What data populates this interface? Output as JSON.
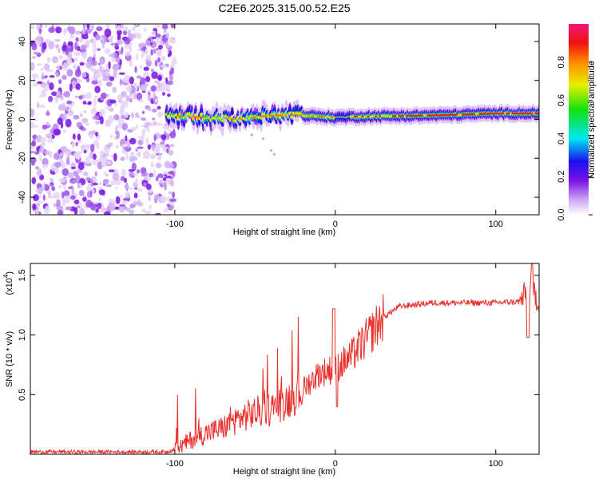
{
  "chart_data": [
    {
      "type": "heatmap",
      "title": "C2E6.2025.315.00.52.E25",
      "xlabel": "Height of straight line (km)",
      "ylabel": "Frequency (Hz)",
      "xlim": [
        -190,
        127
      ],
      "ylim": [
        -49,
        49
      ],
      "x_ticks": [
        -100,
        0,
        100
      ],
      "y_ticks": [
        -40,
        -20,
        0,
        20,
        40
      ],
      "noise_region_x": [
        -190,
        -100
      ],
      "signal_band": {
        "x_start": -105,
        "x_end": 127,
        "center_track": [
          [
            -105,
            2
          ],
          [
            -80,
            1
          ],
          [
            -60,
            0
          ],
          [
            -40,
            2
          ],
          [
            -20,
            2
          ],
          [
            0,
            1
          ],
          [
            20,
            1.5
          ],
          [
            60,
            2
          ],
          [
            100,
            3
          ],
          [
            127,
            3
          ]
        ]
      },
      "colorbar": {
        "label": "Normalized spectral amplitude",
        "range": [
          0.0,
          1.0
        ],
        "ticks": [
          "0.0",
          "0.2",
          "0.4",
          "0.6",
          "0.8"
        ],
        "tick_values": [
          0.0,
          0.2,
          0.4,
          0.6,
          0.8
        ]
      }
    },
    {
      "type": "line",
      "xlabel": "Height of straight line (km)",
      "ylabel": "SNR (10 * v/v)",
      "scale_label": "(x10",
      "scale_exp": "4",
      "scale_close": ")",
      "xlim": [
        -190,
        127
      ],
      "ylim": [
        0,
        1.6
      ],
      "x_ticks": [
        -100,
        0,
        100
      ],
      "y_ticks": [
        0.5,
        1.0,
        1.5
      ],
      "y_tick_labels": [
        "0.5",
        "1.0",
        "1.5"
      ],
      "line_color": "#e8302c",
      "profile": [
        [
          -190,
          0.02
        ],
        [
          -105,
          0.02
        ],
        [
          -98,
          0.05
        ],
        [
          -90,
          0.12
        ],
        [
          -80,
          0.18
        ],
        [
          -70,
          0.22
        ],
        [
          -60,
          0.3
        ],
        [
          -50,
          0.35
        ],
        [
          -40,
          0.38
        ],
        [
          -30,
          0.45
        ],
        [
          -20,
          0.55
        ],
        [
          -10,
          0.68
        ],
        [
          0,
          0.72
        ],
        [
          10,
          0.82
        ],
        [
          20,
          0.98
        ],
        [
          30,
          1.15
        ],
        [
          40,
          1.24
        ],
        [
          60,
          1.27
        ],
        [
          80,
          1.27
        ],
        [
          100,
          1.27
        ],
        [
          115,
          1.28
        ],
        [
          122,
          1.4
        ],
        [
          127,
          1.28
        ]
      ]
    }
  ]
}
